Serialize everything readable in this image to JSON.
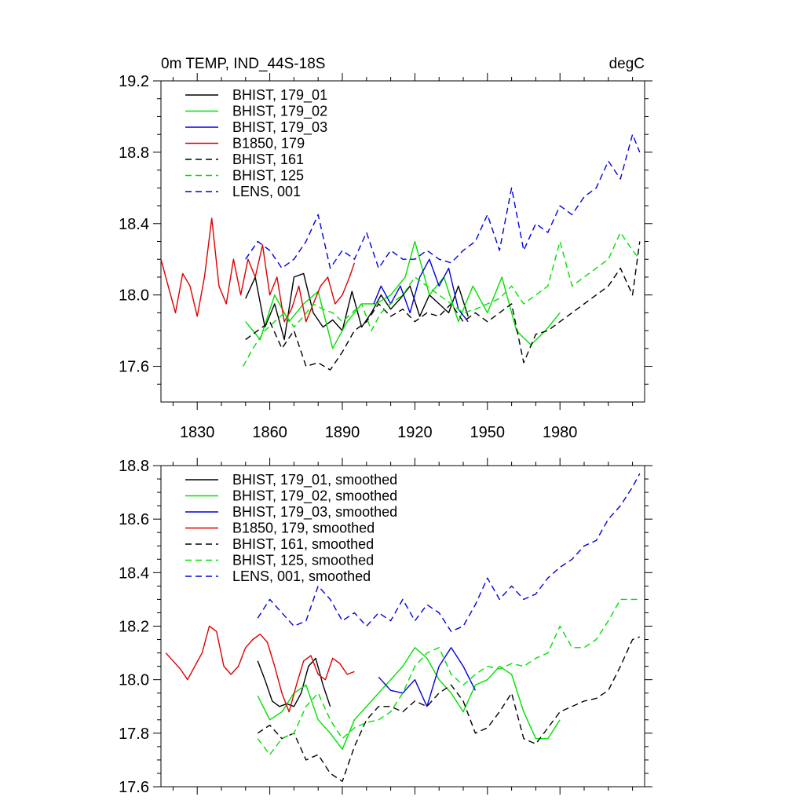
{
  "header": {
    "left_title": "0m TEMP, IND_44S-18S",
    "right_title": "degC"
  },
  "chart_data": [
    {
      "type": "line",
      "title": "0m TEMP, IND_44S-18S",
      "units": "degC",
      "xlim": [
        1815,
        2015
      ],
      "ylim": [
        17.4,
        19.2
      ],
      "x_ticks": [
        1830,
        1860,
        1890,
        1920,
        1950,
        1980
      ],
      "x_tick_labels": [
        "1830",
        "1860",
        "1890",
        "1920",
        "1950",
        "1980"
      ],
      "y_ticks": [
        17.6,
        18.0,
        18.4,
        18.8,
        19.2
      ],
      "y_tick_labels": [
        "17.6",
        "18.0",
        "18.4",
        "18.8",
        "19.2"
      ],
      "legend_position": "top-left",
      "series": [
        {
          "name": "BHIST, 179_01",
          "color": "#000000",
          "dash": "solid",
          "x": [
            1850,
            1854,
            1858,
            1862,
            1866,
            1870,
            1874,
            1878,
            1882,
            1886,
            1890,
            1894,
            1898,
            1902,
            1906,
            1910,
            1914,
            1918,
            1922,
            1926,
            1930,
            1934,
            1938,
            1942
          ],
          "y": [
            17.98,
            18.1,
            17.82,
            17.95,
            17.75,
            18.1,
            18.12,
            17.9,
            17.82,
            17.86,
            17.8,
            18.02,
            17.82,
            17.9,
            18.0,
            17.92,
            17.98,
            18.05,
            17.88,
            18.0,
            17.95,
            17.9,
            18.05,
            17.88
          ]
        },
        {
          "name": "BHIST, 179_02",
          "color": "#00e000",
          "dash": "solid",
          "x": [
            1850,
            1856,
            1862,
            1868,
            1874,
            1880,
            1886,
            1892,
            1898,
            1904,
            1910,
            1916,
            1920,
            1926,
            1932,
            1938,
            1944,
            1950,
            1956,
            1962,
            1968,
            1974,
            1980
          ],
          "y": [
            17.85,
            17.75,
            18.0,
            17.85,
            17.95,
            18.02,
            17.7,
            17.85,
            17.95,
            17.95,
            18.0,
            18.1,
            18.3,
            18.0,
            18.1,
            17.85,
            18.05,
            17.9,
            18.1,
            17.8,
            17.72,
            17.8,
            17.9
          ]
        },
        {
          "name": "BHIST, 179_03",
          "color": "#0000dd",
          "dash": "solid",
          "x": [
            1903,
            1906,
            1910,
            1914,
            1918,
            1922,
            1926,
            1930,
            1934,
            1938,
            1942
          ],
          "y": [
            17.95,
            18.05,
            17.95,
            18.05,
            17.9,
            18.1,
            18.2,
            18.05,
            18.15,
            17.92,
            17.85
          ]
        },
        {
          "name": "B1850, 179",
          "color": "#dd0000",
          "dash": "solid",
          "x": [
            1815,
            1818,
            1821,
            1824,
            1827,
            1830,
            1833,
            1836,
            1839,
            1842,
            1845,
            1848,
            1851,
            1854,
            1857,
            1860,
            1863,
            1866,
            1869,
            1872,
            1875,
            1878,
            1881,
            1884,
            1887,
            1890,
            1893,
            1895
          ],
          "y": [
            18.2,
            18.05,
            17.9,
            18.12,
            18.05,
            17.88,
            18.1,
            18.43,
            18.05,
            17.95,
            18.2,
            18.0,
            18.2,
            18.1,
            18.28,
            18.0,
            18.1,
            17.85,
            17.92,
            18.05,
            17.85,
            17.95,
            18.05,
            18.1,
            17.95,
            18.0,
            18.1,
            18.18
          ]
        },
        {
          "name": "BHIST, 161",
          "color": "#000000",
          "dash": "dashed",
          "x": [
            1850,
            1855,
            1860,
            1865,
            1870,
            1875,
            1880,
            1885,
            1890,
            1895,
            1900,
            1905,
            1910,
            1915,
            1920,
            1925,
            1930,
            1935,
            1940,
            1945,
            1950,
            1955,
            1960,
            1965,
            1970,
            1975,
            1980,
            1985,
            1990,
            1995,
            2000,
            2005,
            2010,
            2013
          ],
          "y": [
            17.75,
            17.8,
            17.85,
            17.7,
            17.8,
            17.6,
            17.62,
            17.58,
            17.68,
            17.8,
            17.85,
            17.95,
            17.88,
            17.92,
            17.85,
            17.9,
            17.88,
            17.95,
            17.85,
            17.9,
            17.85,
            17.9,
            17.95,
            17.62,
            17.78,
            17.8,
            17.85,
            17.9,
            17.95,
            18.0,
            18.05,
            18.15,
            18.0,
            18.3
          ]
        },
        {
          "name": "BHIST, 125",
          "color": "#00e000",
          "dash": "dashed",
          "x": [
            1849,
            1853,
            1858,
            1862,
            1866,
            1870,
            1874,
            1878,
            1882,
            1886,
            1890,
            1894,
            1898,
            1902,
            1906,
            1910,
            1915,
            1920,
            1925,
            1930,
            1935,
            1940,
            1945,
            1950,
            1955,
            1960,
            1965,
            1970,
            1975,
            1980,
            1985,
            1990,
            1995,
            2000,
            2005,
            2010,
            2013
          ],
          "y": [
            17.6,
            17.7,
            17.8,
            17.85,
            17.9,
            17.82,
            17.88,
            17.95,
            17.92,
            17.9,
            17.85,
            17.9,
            17.95,
            17.8,
            17.9,
            17.95,
            18.0,
            18.1,
            18.05,
            18.0,
            17.95,
            17.9,
            17.92,
            17.95,
            17.98,
            18.05,
            17.95,
            18.0,
            18.05,
            18.3,
            18.05,
            18.1,
            18.15,
            18.2,
            18.35,
            18.25,
            18.2
          ]
        },
        {
          "name": "LENS, 001",
          "color": "#0000dd",
          "dash": "dashed",
          "x": [
            1850,
            1855,
            1860,
            1865,
            1870,
            1875,
            1880,
            1885,
            1890,
            1895,
            1900,
            1905,
            1910,
            1915,
            1920,
            1925,
            1930,
            1935,
            1940,
            1945,
            1950,
            1955,
            1960,
            1965,
            1970,
            1975,
            1980,
            1985,
            1990,
            1995,
            2000,
            2005,
            2010,
            2013
          ],
          "y": [
            18.2,
            18.3,
            18.25,
            18.15,
            18.2,
            18.3,
            18.45,
            18.15,
            18.25,
            18.2,
            18.35,
            18.15,
            18.25,
            18.2,
            18.2,
            18.25,
            18.2,
            18.18,
            18.25,
            18.3,
            18.45,
            18.25,
            18.6,
            18.25,
            18.4,
            18.35,
            18.5,
            18.45,
            18.55,
            18.6,
            18.75,
            18.65,
            18.9,
            18.8
          ]
        }
      ]
    },
    {
      "type": "line",
      "xlim": [
        1815,
        2015
      ],
      "ylim": [
        17.6,
        18.8
      ],
      "y_ticks": [
        17.6,
        17.8,
        18.0,
        18.2,
        18.4,
        18.6,
        18.8
      ],
      "y_tick_labels": [
        "17.6",
        "17.8",
        "18.0",
        "18.2",
        "18.4",
        "18.6",
        "18.8"
      ],
      "legend_position": "top-left",
      "series": [
        {
          "name": "BHIST, 179_01, smoothed",
          "color": "#000000",
          "dash": "solid",
          "x": [
            1855,
            1858,
            1861,
            1864,
            1867,
            1870,
            1873,
            1876,
            1879,
            1882,
            1885
          ],
          "y": [
            18.07,
            18.0,
            17.92,
            17.9,
            17.91,
            17.9,
            17.95,
            18.05,
            18.08,
            17.98,
            17.9
          ]
        },
        {
          "name": "BHIST, 179_02, smoothed",
          "color": "#00e000",
          "dash": "solid",
          "x": [
            1855,
            1860,
            1865,
            1870,
            1875,
            1880,
            1885,
            1890,
            1895,
            1900,
            1905,
            1910,
            1915,
            1920,
            1925,
            1930,
            1935,
            1940,
            1945,
            1950,
            1955,
            1960,
            1965,
            1970,
            1975,
            1980
          ],
          "y": [
            17.94,
            17.85,
            17.88,
            17.95,
            17.98,
            17.85,
            17.8,
            17.74,
            17.85,
            17.9,
            17.95,
            18.0,
            18.05,
            18.12,
            18.08,
            18.0,
            17.95,
            17.88,
            17.98,
            18.0,
            18.05,
            18.02,
            17.88,
            17.78,
            17.78,
            17.85
          ]
        },
        {
          "name": "BHIST, 179_03, smoothed",
          "color": "#0000dd",
          "dash": "solid",
          "x": [
            1905,
            1910,
            1915,
            1920,
            1925,
            1930,
            1935,
            1940,
            1945
          ],
          "y": [
            18.01,
            17.96,
            17.95,
            18.0,
            17.9,
            18.05,
            18.12,
            18.05,
            17.96
          ]
        },
        {
          "name": "B1850, 179, smoothed",
          "color": "#dd0000",
          "dash": "solid",
          "x": [
            1817,
            1820,
            1823,
            1826,
            1829,
            1832,
            1835,
            1838,
            1841,
            1844,
            1847,
            1850,
            1853,
            1856,
            1859,
            1862,
            1865,
            1868,
            1871,
            1874,
            1877,
            1880,
            1883,
            1886,
            1889,
            1892,
            1895
          ],
          "y": [
            18.1,
            18.07,
            18.04,
            18.0,
            18.05,
            18.1,
            18.2,
            18.18,
            18.05,
            18.02,
            18.05,
            18.12,
            18.15,
            18.17,
            18.14,
            18.05,
            17.95,
            17.88,
            17.98,
            18.07,
            18.09,
            18.02,
            18.0,
            18.08,
            18.06,
            18.02,
            18.03
          ]
        },
        {
          "name": "BHIST, 161, smoothed",
          "color": "#000000",
          "dash": "dashed",
          "x": [
            1855,
            1860,
            1865,
            1870,
            1875,
            1880,
            1885,
            1890,
            1895,
            1900,
            1905,
            1910,
            1915,
            1920,
            1925,
            1930,
            1935,
            1940,
            1945,
            1950,
            1955,
            1960,
            1965,
            1970,
            1975,
            1980,
            1985,
            1990,
            1995,
            2000,
            2005,
            2010,
            2013
          ],
          "y": [
            17.8,
            17.83,
            17.78,
            17.8,
            17.7,
            17.72,
            17.65,
            17.62,
            17.75,
            17.85,
            17.9,
            17.9,
            17.88,
            17.92,
            17.9,
            17.95,
            17.98,
            17.92,
            17.8,
            17.82,
            17.88,
            17.95,
            17.78,
            17.76,
            17.82,
            17.88,
            17.9,
            17.92,
            17.93,
            17.96,
            18.05,
            18.15,
            18.16
          ]
        },
        {
          "name": "BHIST, 125, smoothed",
          "color": "#00e000",
          "dash": "dashed",
          "x": [
            1855,
            1860,
            1865,
            1870,
            1875,
            1880,
            1885,
            1890,
            1895,
            1900,
            1905,
            1910,
            1915,
            1920,
            1925,
            1930,
            1935,
            1940,
            1945,
            1950,
            1955,
            1960,
            1965,
            1970,
            1975,
            1980,
            1985,
            1990,
            1995,
            2000,
            2005,
            2010,
            2013
          ],
          "y": [
            17.78,
            17.72,
            17.78,
            17.8,
            17.9,
            17.95,
            17.85,
            17.78,
            17.82,
            17.84,
            17.85,
            17.88,
            17.95,
            18.05,
            18.1,
            18.12,
            18.02,
            17.98,
            18.02,
            18.05,
            18.04,
            18.06,
            18.05,
            18.08,
            18.1,
            18.2,
            18.12,
            18.12,
            18.15,
            18.22,
            18.3,
            18.3,
            18.3
          ]
        },
        {
          "name": "LENS, 001, smoothed",
          "color": "#0000dd",
          "dash": "dashed",
          "x": [
            1855,
            1860,
            1865,
            1870,
            1875,
            1880,
            1885,
            1890,
            1895,
            1900,
            1905,
            1910,
            1915,
            1920,
            1925,
            1930,
            1935,
            1940,
            1945,
            1950,
            1955,
            1960,
            1965,
            1970,
            1975,
            1980,
            1985,
            1990,
            1995,
            2000,
            2005,
            2010,
            2013
          ],
          "y": [
            18.23,
            18.3,
            18.25,
            18.2,
            18.22,
            18.35,
            18.3,
            18.22,
            18.25,
            18.2,
            18.25,
            18.22,
            18.3,
            18.22,
            18.28,
            18.25,
            18.18,
            18.2,
            18.28,
            18.38,
            18.3,
            18.35,
            18.3,
            18.32,
            18.38,
            18.42,
            18.45,
            18.5,
            18.52,
            18.6,
            18.65,
            18.72,
            18.77
          ]
        }
      ]
    }
  ]
}
